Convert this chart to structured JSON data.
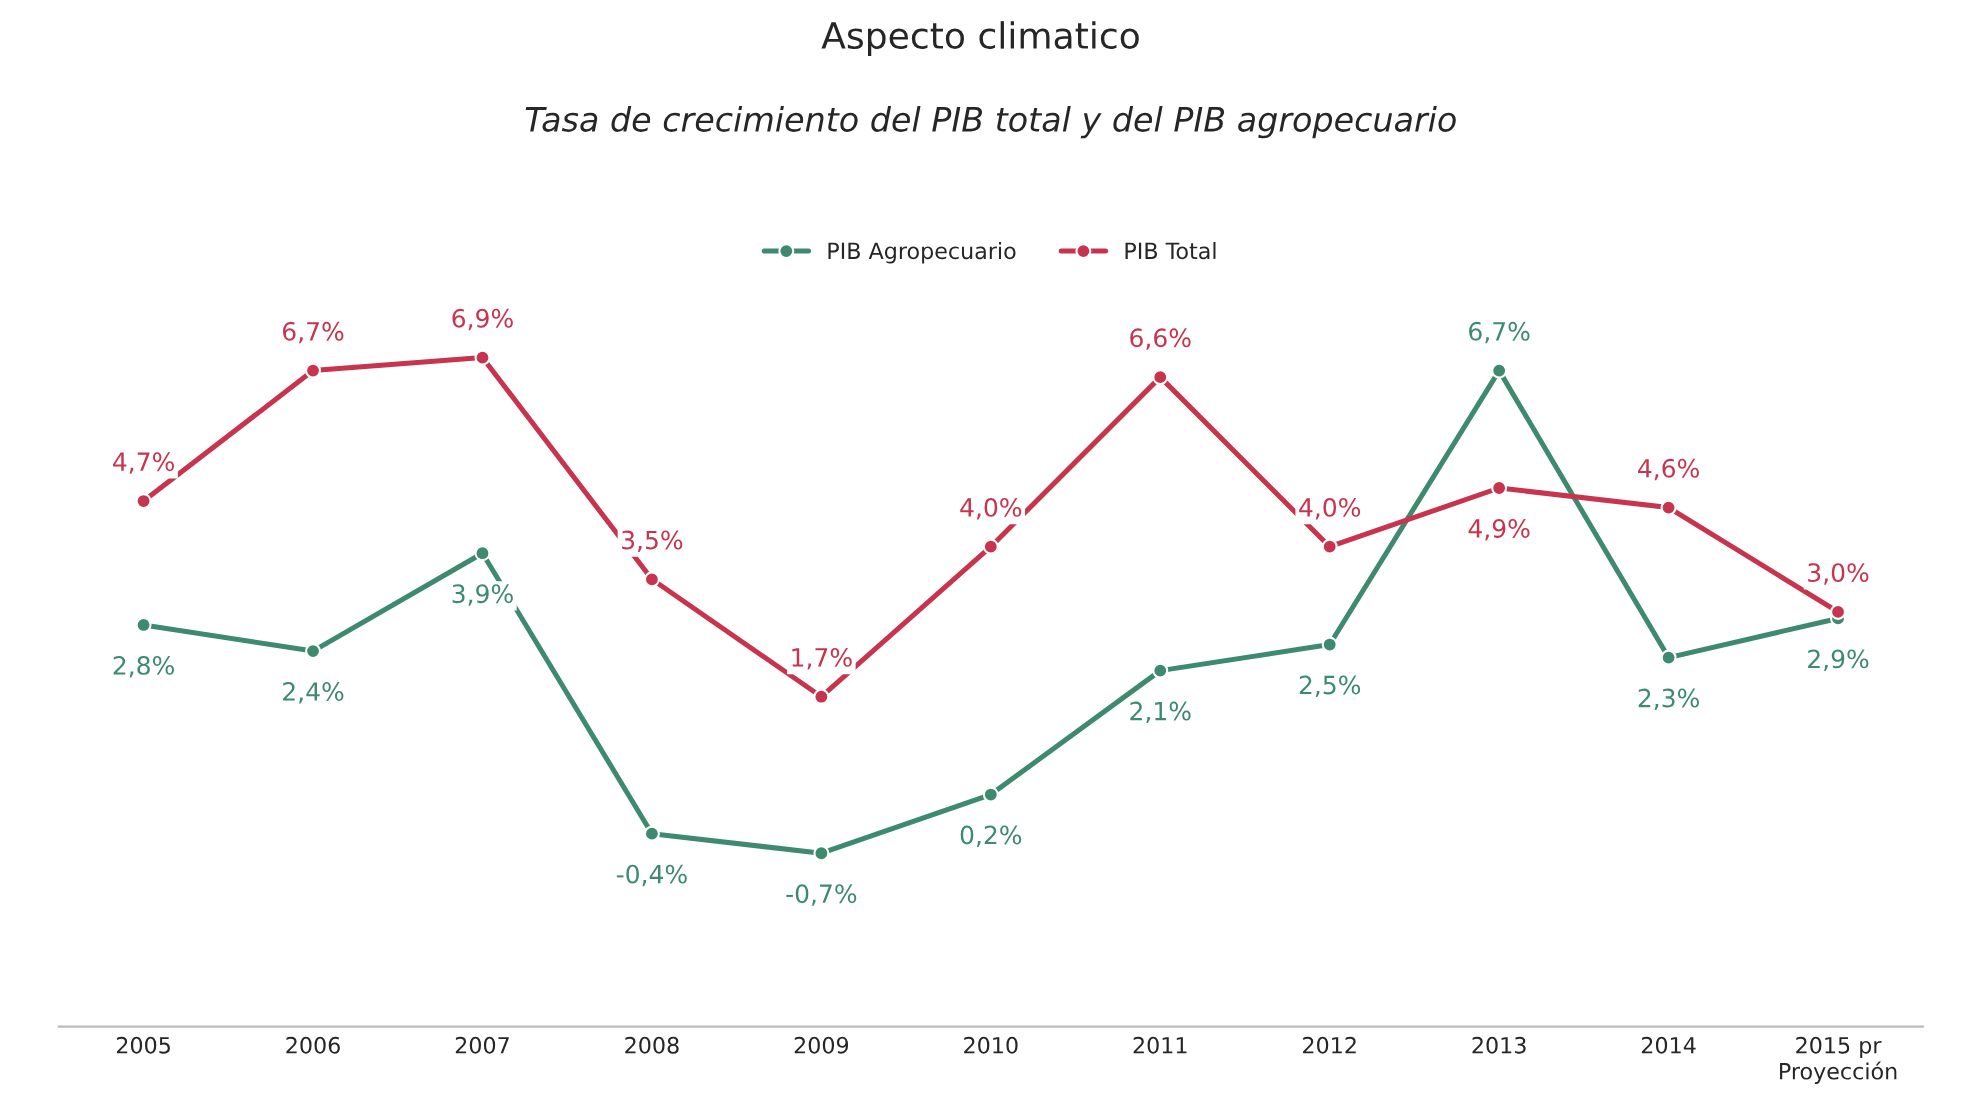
{
  "chart_data": {
    "type": "line",
    "title": "Tasa de crecimiento del PIB total y del PIB agropecuario",
    "annotations": [
      "Aspecto climatico"
    ],
    "categories": [
      "2005",
      "2006",
      "2007",
      "2008",
      "2009",
      "2010",
      "2011",
      "2012",
      "2013",
      "2014",
      "2015 pr\nProyección"
    ],
    "series": [
      {
        "name": "PIB Agropecuario",
        "color": "#3d8a6e",
        "values": [
          2.8,
          2.4,
          3.9,
          -0.4,
          -0.7,
          0.2,
          2.1,
          2.5,
          6.7,
          2.3,
          2.9
        ],
        "value_labels": [
          "2,8%",
          "2,4%",
          "3,9%",
          "-0,4%",
          "-0,7%",
          "0,2%",
          "2,1%",
          "2,5%",
          "6,7%",
          "2,3%",
          "2,9%"
        ]
      },
      {
        "name": "PIB Total",
        "color": "#c8344e",
        "values": [
          4.7,
          6.7,
          6.9,
          3.5,
          1.7,
          4.0,
          6.6,
          4.0,
          4.9,
          4.6,
          3.0
        ],
        "value_labels": [
          "4,7%",
          "6,7%",
          "6,9%",
          "3,5%",
          "1,7%",
          "4,0%",
          "6,6%",
          "4,0%",
          "4,9%",
          "4,6%",
          "3,0%"
        ]
      }
    ],
    "marker": "circle",
    "line_style": "solid",
    "legend": "top",
    "grid": false,
    "tick_labels": "x"
  }
}
